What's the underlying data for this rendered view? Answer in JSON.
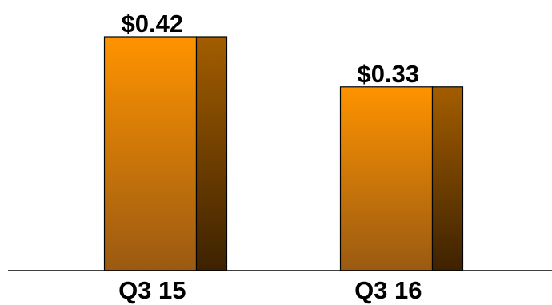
{
  "chart_data": {
    "type": "bar",
    "categories": [
      "Q3 15",
      "Q3 16"
    ],
    "values": [
      0.42,
      0.33
    ],
    "data_labels": [
      "$0.42",
      "$0.33"
    ],
    "title": "",
    "xlabel": "",
    "ylabel": "",
    "ylim": [
      0,
      0.42
    ],
    "grid": false,
    "legend": "none",
    "colors": {
      "bar_top": "#ff9300",
      "bar_bottom": "#9a5a12",
      "side_top": "#a35d00",
      "side_bottom": "#3d2200",
      "outline": "#000000",
      "axis": "#000000"
    }
  }
}
